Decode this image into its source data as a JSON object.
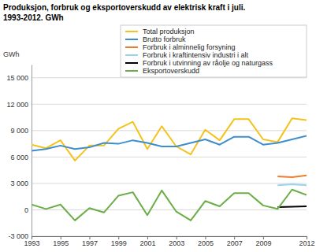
{
  "chart_data": {
    "type": "line",
    "title": "Produksjon, forbruk og eksportoverskudd av elektrisk kraft i juli.",
    "subtitle": "1993-2012. GWh",
    "y_label": "GWh",
    "x": [
      1993,
      1994,
      1995,
      1996,
      1997,
      1998,
      1999,
      2000,
      2001,
      2002,
      2003,
      2004,
      2005,
      2006,
      2007,
      2008,
      2009,
      2010,
      2011,
      2012
    ],
    "xlim": [
      1993,
      2012
    ],
    "xticks": [
      1993,
      1995,
      1997,
      1999,
      2001,
      2003,
      2005,
      2007,
      2009,
      2012
    ],
    "ylim": [
      -3000,
      16500
    ],
    "yticks": [
      {
        "value": -3000,
        "label": "-3 000"
      },
      0,
      {
        "value": 3000,
        "label": "3 000"
      },
      {
        "value": 6000,
        "label": "6 000"
      },
      {
        "value": 9000,
        "label": "9 000"
      },
      {
        "value": 12000,
        "label": "12 000"
      },
      {
        "value": 15000,
        "label": "15 000"
      }
    ],
    "grid": true,
    "legend": "top-right",
    "series": [
      {
        "name": "Total produksjon",
        "color": "#f5c21b",
        "values": [
          7400,
          7000,
          7900,
          5600,
          7300,
          7300,
          9200,
          10000,
          6900,
          9500,
          7200,
          6300,
          9100,
          7900,
          10300,
          10300,
          8000,
          7700,
          10400,
          10200
        ]
      },
      {
        "name": "Brutto forbruk",
        "color": "#3d8ecf",
        "values": [
          6700,
          6900,
          7300,
          6900,
          7100,
          7600,
          7500,
          7900,
          7600,
          7200,
          7200,
          7600,
          8000,
          7400,
          8300,
          8300,
          7400,
          7600,
          8000,
          8400
        ]
      },
      {
        "name": "Forbruk i alminnelig forsyning",
        "color": "#ee7d2a",
        "values": [
          null,
          null,
          null,
          null,
          null,
          null,
          null,
          null,
          null,
          null,
          null,
          null,
          null,
          null,
          null,
          null,
          null,
          3800,
          3700,
          3900
        ]
      },
      {
        "name": "Forbruk i kraftintensiv industri i alt",
        "color": "#98d3e6",
        "values": [
          null,
          null,
          null,
          null,
          null,
          null,
          null,
          null,
          null,
          null,
          null,
          null,
          null,
          null,
          null,
          null,
          null,
          2800,
          2900,
          2800
        ]
      },
      {
        "name": "Forbruk i utvinning av råolje og naturgass",
        "color": "#000000",
        "values": [
          null,
          null,
          null,
          null,
          null,
          null,
          null,
          null,
          null,
          null,
          null,
          null,
          null,
          null,
          null,
          null,
          null,
          300,
          350,
          400
        ]
      },
      {
        "name": "Eksportoverskudd",
        "color": "#6bae47",
        "values": [
          600,
          100,
          600,
          -1200,
          200,
          -300,
          1600,
          2000,
          -600,
          2200,
          -200,
          -1200,
          1000,
          400,
          1900,
          1900,
          500,
          100,
          2300,
          1700
        ]
      }
    ]
  }
}
